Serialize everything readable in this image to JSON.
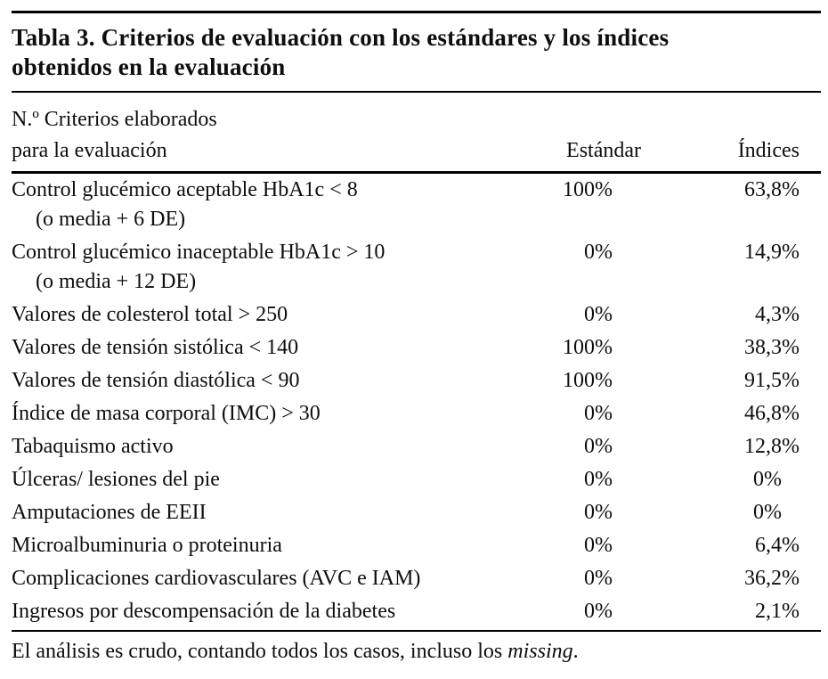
{
  "title": {
    "line1": "Tabla 3. Criterios de evaluación con los estándares y los índices",
    "line2": "obtenidos en la evaluación"
  },
  "table": {
    "header": {
      "col1_line1": "N.º Criterios elaborados",
      "col1_line2": "para la evaluación",
      "col2": "Estándar",
      "col3": "Índices"
    },
    "rows": [
      {
        "label": "Control glucémico aceptable HbA1c < 8",
        "label2": "(o media + 6 DE)",
        "estandar": "100%",
        "indices": "63,8%"
      },
      {
        "label": "Control glucémico inaceptable HbA1c > 10",
        "label2": "(o media + 12 DE)",
        "estandar": "0%",
        "indices": "14,9%"
      },
      {
        "label": "Valores de colesterol total > 250",
        "estandar": "0%",
        "indices": "4,3%"
      },
      {
        "label": "Valores de tensión sistólica < 140",
        "estandar": "100%",
        "indices": "38,3%"
      },
      {
        "label": "Valores de tensión diastólica < 90",
        "estandar": "100%",
        "indices": "91,5%"
      },
      {
        "label": "Índice de masa corporal (IMC) > 30",
        "estandar": "0%",
        "indices": "46,8%"
      },
      {
        "label": "Tabaquismo activo",
        "estandar": "0%",
        "indices": "12,8%"
      },
      {
        "label": "Úlceras/ lesiones del pie",
        "estandar": "0%",
        "indices": "0%"
      },
      {
        "label": "Amputaciones de EEII",
        "estandar": "0%",
        "indices": "0%"
      },
      {
        "label": "Microalbuminuria o proteinuria",
        "estandar": "0%",
        "indices": "6,4%"
      },
      {
        "label": "Complicaciones cardiovasculares (AVC e IAM)",
        "estandar": "0%",
        "indices": "36,2%"
      },
      {
        "label": "Ingresos por descompensación de la diabetes",
        "estandar": "0%",
        "indices": "2,1%"
      }
    ]
  },
  "footnote": {
    "text": "El análisis es crudo, contando todos los casos, incluso los ",
    "emphasis": "missing",
    "suffix": "."
  },
  "colors": {
    "text": "#0e0e0e",
    "rule": "#000000",
    "background": "#ffffff"
  }
}
